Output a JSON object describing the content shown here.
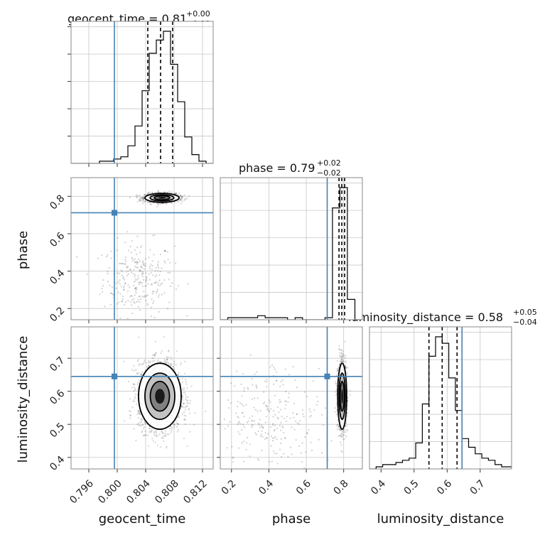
{
  "chart_data": {
    "type": "scatter",
    "subtype": "corner-plot",
    "parameters": [
      "geocent_time",
      "phase",
      "luminosity_distance"
    ],
    "titles": {
      "geocent_time": {
        "name": "geocent_time",
        "value": "0.81",
        "plus": "+0.00",
        "minus": "−0.00"
      },
      "phase": {
        "name": "phase",
        "value": "0.79",
        "plus": "+0.02",
        "minus": "−0.02"
      },
      "luminosity_distance": {
        "name": "luminosity_distance",
        "value": "0.58",
        "plus": "+0.05",
        "minus": "−0.04"
      }
    },
    "axis_labels": {
      "geocent_time": "geocent_time",
      "phase": "phase",
      "luminosity_distance": "luminosity_distance"
    },
    "ranges": {
      "geocent_time": [
        0.7935,
        0.8135
      ],
      "phase": [
        0.14,
        0.9
      ],
      "luminosity_distance": [
        0.365,
        0.795
      ]
    },
    "ticks": {
      "geocent_time": [
        "0.796",
        "0.800",
        "0.804",
        "0.808",
        "0.812"
      ],
      "phase": [
        "0.2",
        "0.4",
        "0.6",
        "0.8"
      ],
      "luminosity_distance": [
        "0.4",
        "0.5",
        "0.6",
        "0.7"
      ]
    },
    "truths": {
      "geocent_time": 0.7996,
      "phase": 0.712,
      "luminosity_distance": 0.645
    },
    "quantiles": {
      "geocent_time": [
        0.8043,
        0.8061,
        0.8078
      ],
      "phase": [
        0.775,
        0.79,
        0.805
      ],
      "luminosity_distance": [
        0.545,
        0.585,
        0.63
      ]
    },
    "histograms": {
      "geocent_time": {
        "bins": [
          0.7935,
          0.7945,
          0.7955,
          0.7965,
          0.7975,
          0.7985,
          0.7995,
          0.8005,
          0.8015,
          0.8025,
          0.8035,
          0.8045,
          0.8055,
          0.8065,
          0.8075,
          0.8085,
          0.8095,
          0.8105,
          0.8115,
          0.8125,
          0.8135
        ],
        "counts": [
          0,
          0,
          0,
          0,
          1,
          1,
          2,
          3,
          8,
          17,
          33,
          50,
          56,
          60,
          45,
          28,
          12,
          4,
          1,
          0
        ]
      },
      "phase": {
        "bins": [
          0.14,
          0.18,
          0.22,
          0.26,
          0.3,
          0.34,
          0.38,
          0.42,
          0.46,
          0.5,
          0.54,
          0.58,
          0.62,
          0.66,
          0.7,
          0.74,
          0.78,
          0.82,
          0.86,
          0.9
        ],
        "counts": [
          0,
          1,
          1,
          1,
          1,
          2,
          1,
          1,
          1,
          0,
          1,
          0,
          0,
          0,
          1,
          55,
          65,
          10,
          0
        ]
      },
      "luminosity_distance": {
        "bins": [
          0.365,
          0.385,
          0.405,
          0.425,
          0.445,
          0.465,
          0.485,
          0.505,
          0.525,
          0.545,
          0.565,
          0.585,
          0.605,
          0.625,
          0.645,
          0.665,
          0.685,
          0.705,
          0.725,
          0.745,
          0.765,
          0.785,
          0.795
        ],
        "counts": [
          0,
          1,
          2,
          2,
          3,
          4,
          5,
          12,
          30,
          52,
          61,
          58,
          42,
          27,
          14,
          10,
          7,
          5,
          4,
          2,
          1,
          1
        ]
      }
    },
    "scatter": [
      {
        "x_param": "geocent_time",
        "y_param": "phase",
        "mean": [
          0.8063,
          0.792
        ],
        "sd": [
          0.0012,
          0.012
        ],
        "n": 1200,
        "bg_mean": [
          0.803,
          0.36
        ],
        "bg_sd": [
          0.0025,
          0.1
        ],
        "bg_n": 280
      },
      {
        "x_param": "geocent_time",
        "y_param": "luminosity_distance",
        "mean": [
          0.806,
          0.585
        ],
        "sd": [
          0.0015,
          0.05
        ],
        "n": 2200
      },
      {
        "x_param": "phase",
        "y_param": "luminosity_distance",
        "mean": [
          0.792,
          0.585
        ],
        "sd": [
          0.012,
          0.05
        ],
        "n": 1400,
        "bg_mean": [
          0.42,
          0.52
        ],
        "bg_sd": [
          0.14,
          0.08
        ],
        "bg_n": 260
      }
    ],
    "grid": true
  }
}
